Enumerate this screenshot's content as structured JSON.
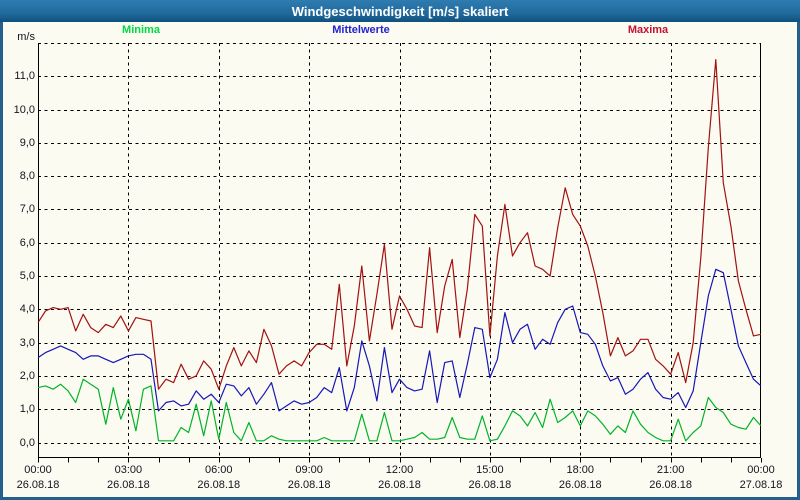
{
  "window": {
    "title": "Windgeschwindigkeit [m/s] skaliert"
  },
  "colors": {
    "titlebar": "#1d6fa4",
    "window_border": "#24608b",
    "background": "#fbfbf2",
    "grid": "#000000",
    "axis_text": "#14141e"
  },
  "legend": {
    "items": [
      {
        "label": "Minima",
        "color": "#00d944"
      },
      {
        "label": "Mittelwerte",
        "color": "#2323cd"
      },
      {
        "label": "Maxima",
        "color": "#c41230"
      }
    ]
  },
  "y_axis": {
    "unit": "m/s",
    "tick_labels": [
      "0,0",
      "1,0",
      "2,0",
      "3,0",
      "4,0",
      "5,0",
      "6,0",
      "7,0",
      "8,0",
      "9,0",
      "10,0",
      "11,0"
    ]
  },
  "x_axis": {
    "ticks": [
      {
        "time": "00:00",
        "date": "26.08.18"
      },
      {
        "time": "03:00",
        "date": "26.08.18"
      },
      {
        "time": "06:00",
        "date": "26.08.18"
      },
      {
        "time": "09:00",
        "date": "26.08.18"
      },
      {
        "time": "12:00",
        "date": "26.08.18"
      },
      {
        "time": "15:00",
        "date": "26.08.18"
      },
      {
        "time": "18:00",
        "date": "26.08.18"
      },
      {
        "time": "21:00",
        "date": "26.08.18"
      },
      {
        "time": "00:00",
        "date": "27.08.18"
      }
    ]
  },
  "chart_data": {
    "type": "line",
    "title": "Windgeschwindigkeit [m/s] skaliert",
    "ylabel": "m/s",
    "ylim": [
      0,
      12
    ],
    "xlim_hours": [
      0,
      24
    ],
    "x_start_hours": 0,
    "x_step_hours": 0.25,
    "grid": "dashed",
    "legend_position": "top",
    "series": [
      {
        "name": "Minima",
        "color": "#00b428",
        "values": [
          1.65,
          1.7,
          1.6,
          1.75,
          1.55,
          1.2,
          1.9,
          1.75,
          1.6,
          0.55,
          1.65,
          0.7,
          1.3,
          0.35,
          1.6,
          1.7,
          0.05,
          0.05,
          0.05,
          0.45,
          0.3,
          1.15,
          0.2,
          1.25,
          0.1,
          1.2,
          0.3,
          0.05,
          0.6,
          0.05,
          0.05,
          0.2,
          0.1,
          0.05,
          0.05,
          0.05,
          0.05,
          0.05,
          0.15,
          0.05,
          0.05,
          0.05,
          0.05,
          0.85,
          0.05,
          0.05,
          0.9,
          0.05,
          0.05,
          0.1,
          0.15,
          0.3,
          0.1,
          0.1,
          0.15,
          0.75,
          0.15,
          0.1,
          0.1,
          0.8,
          0.05,
          0.1,
          0.5,
          0.95,
          0.8,
          0.5,
          0.9,
          0.45,
          1.3,
          0.6,
          0.75,
          0.95,
          0.5,
          0.95,
          0.8,
          0.55,
          0.25,
          0.5,
          0.3,
          0.95,
          0.55,
          0.3,
          0.15,
          0.05,
          0.05,
          0.7,
          0.05,
          0.3,
          0.5,
          1.35,
          1.05,
          0.9,
          0.55,
          0.45,
          0.4,
          0.75,
          0.5
        ]
      },
      {
        "name": "Mittelwerte",
        "color": "#1717b8",
        "values": [
          2.55,
          2.7,
          2.8,
          2.9,
          2.8,
          2.7,
          2.5,
          2.6,
          2.6,
          2.5,
          2.4,
          2.5,
          2.6,
          2.65,
          2.65,
          2.5,
          0.95,
          1.2,
          1.25,
          1.1,
          1.15,
          1.55,
          1.3,
          1.45,
          1.2,
          1.75,
          1.7,
          1.4,
          1.65,
          1.15,
          1.45,
          1.8,
          0.95,
          1.1,
          1.25,
          1.15,
          1.2,
          1.35,
          1.65,
          1.5,
          2.25,
          0.95,
          1.65,
          3.05,
          2.3,
          1.25,
          2.85,
          1.5,
          1.9,
          1.65,
          1.55,
          1.6,
          2.75,
          1.2,
          2.4,
          2.45,
          1.35,
          2.35,
          3.45,
          3.4,
          1.95,
          2.5,
          3.9,
          3.0,
          3.4,
          3.55,
          2.8,
          3.1,
          2.95,
          3.6,
          4.0,
          4.1,
          3.3,
          3.25,
          2.95,
          2.3,
          1.85,
          1.95,
          1.45,
          1.6,
          1.9,
          2.1,
          1.6,
          1.35,
          1.3,
          1.5,
          1.05,
          1.55,
          3.0,
          4.4,
          5.2,
          5.1,
          4.0,
          2.9,
          2.4,
          1.9,
          1.7
        ]
      },
      {
        "name": "Maxima",
        "color": "#a31111",
        "values": [
          3.6,
          3.95,
          4.05,
          4.0,
          4.05,
          3.35,
          3.85,
          3.45,
          3.3,
          3.55,
          3.45,
          3.8,
          3.35,
          3.75,
          3.7,
          3.65,
          1.6,
          1.9,
          1.8,
          2.35,
          1.9,
          2.0,
          2.45,
          2.2,
          1.6,
          2.3,
          2.85,
          2.3,
          2.75,
          2.4,
          3.4,
          2.9,
          2.05,
          2.3,
          2.45,
          2.3,
          2.7,
          2.95,
          2.95,
          2.8,
          4.75,
          2.3,
          3.5,
          5.3,
          3.05,
          4.45,
          5.95,
          3.4,
          4.4,
          4.0,
          3.5,
          3.45,
          5.85,
          3.3,
          4.7,
          5.5,
          3.15,
          4.6,
          6.85,
          6.5,
          3.2,
          5.6,
          7.15,
          5.6,
          6.0,
          6.3,
          5.3,
          5.2,
          5.0,
          6.45,
          7.65,
          6.85,
          6.5,
          5.9,
          5.0,
          3.9,
          2.6,
          3.15,
          2.6,
          2.75,
          3.1,
          3.1,
          2.5,
          2.3,
          2.05,
          2.7,
          1.8,
          3.0,
          5.55,
          8.85,
          11.5,
          7.8,
          6.5,
          4.85,
          4.0,
          3.2,
          3.25
        ]
      }
    ]
  }
}
